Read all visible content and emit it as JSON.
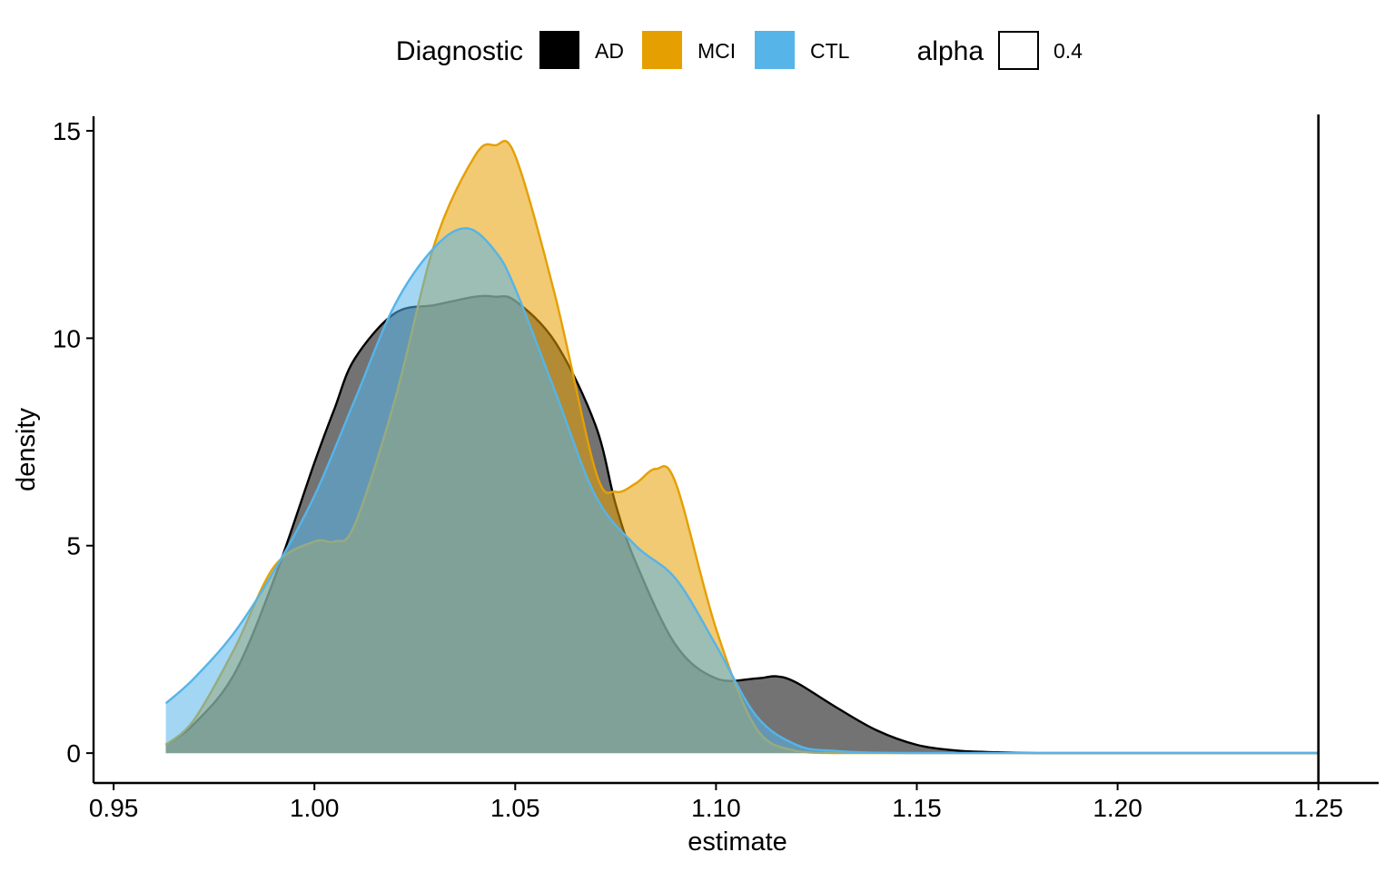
{
  "chart_data": {
    "type": "area",
    "xlabel": "estimate",
    "ylabel": "density",
    "xlim": [
      0.945,
      1.265
    ],
    "ylim": [
      -0.72,
      15.35
    ],
    "xticks": [
      0.95,
      1.0,
      1.05,
      1.1,
      1.15,
      1.2,
      1.25
    ],
    "xtick_labels": [
      "0.95",
      "1.00",
      "1.05",
      "1.10",
      "1.15",
      "1.20",
      "1.25"
    ],
    "yticks": [
      0,
      5,
      10,
      15
    ],
    "ytick_labels": [
      "0",
      "5",
      "10",
      "15"
    ],
    "vline_x": 1.25,
    "grid": false,
    "legend": {
      "position": "top",
      "title": "Diagnostic",
      "entries": [
        {
          "label": "AD",
          "color": "#000000"
        },
        {
          "label": "MCI",
          "color": "#E69F00"
        },
        {
          "label": "CTL",
          "color": "#56B4E9"
        }
      ],
      "alpha_title": "alpha",
      "alpha_label": "0.4"
    },
    "fill_alpha": 0.55,
    "series": [
      {
        "name": "AD",
        "color": "#000000",
        "x": [
          0.963,
          0.97,
          0.98,
          0.99,
          1.0,
          1.005,
          1.01,
          1.02,
          1.03,
          1.04,
          1.045,
          1.05,
          1.06,
          1.07,
          1.075,
          1.08,
          1.09,
          1.1,
          1.11,
          1.115,
          1.12,
          1.13,
          1.14,
          1.15,
          1.16,
          1.17,
          1.18,
          1.2,
          1.25
        ],
        "y": [
          0.2,
          0.7,
          1.9,
          4.2,
          7.0,
          8.3,
          9.5,
          10.6,
          10.8,
          11.0,
          11.0,
          10.9,
          9.9,
          7.9,
          6.0,
          4.6,
          2.6,
          1.8,
          1.8,
          1.85,
          1.7,
          1.1,
          0.55,
          0.2,
          0.06,
          0.02,
          0.0,
          0.0,
          0.0
        ]
      },
      {
        "name": "MCI",
        "color": "#E69F00",
        "x": [
          0.963,
          0.97,
          0.98,
          0.99,
          1.0,
          1.005,
          1.01,
          1.02,
          1.03,
          1.04,
          1.045,
          1.05,
          1.06,
          1.07,
          1.075,
          1.08,
          1.085,
          1.09,
          1.1,
          1.11,
          1.12,
          1.13,
          1.15,
          1.2,
          1.25
        ],
        "y": [
          0.2,
          0.8,
          2.5,
          4.5,
          5.1,
          5.1,
          5.5,
          8.5,
          12.3,
          14.4,
          14.65,
          14.4,
          11.0,
          6.8,
          6.3,
          6.5,
          6.85,
          6.5,
          3.0,
          0.6,
          0.05,
          0.0,
          0.0,
          0.0,
          0.0
        ]
      },
      {
        "name": "CTL",
        "color": "#56B4E9",
        "x": [
          0.963,
          0.97,
          0.98,
          0.99,
          1.0,
          1.01,
          1.02,
          1.03,
          1.038,
          1.045,
          1.05,
          1.06,
          1.07,
          1.08,
          1.09,
          1.1,
          1.11,
          1.12,
          1.13,
          1.15,
          1.2,
          1.25
        ],
        "y": [
          1.2,
          1.8,
          2.9,
          4.4,
          6.2,
          8.5,
          10.8,
          12.2,
          12.65,
          12.1,
          11.2,
          8.7,
          6.2,
          5.0,
          4.2,
          2.6,
          0.9,
          0.2,
          0.05,
          0.0,
          0.0,
          0.0
        ]
      }
    ]
  }
}
